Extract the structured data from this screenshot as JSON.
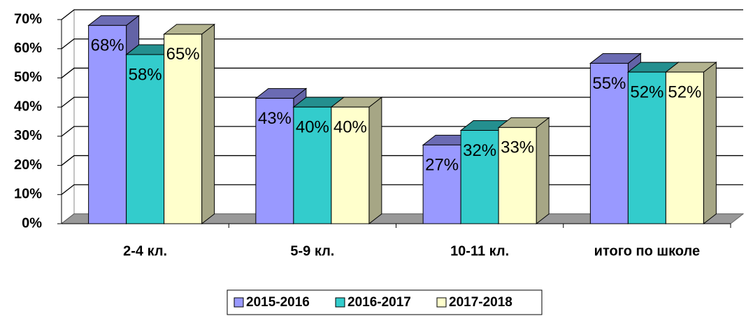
{
  "chart_data": {
    "type": "bar3d",
    "categories": [
      "2-4 кл.",
      "5-9 кл.",
      "10-11 кл.",
      "итого по школе"
    ],
    "series": [
      {
        "name": "2015-2016",
        "color": "#9999ff",
        "values": [
          68,
          43,
          27,
          55
        ],
        "value_labels": [
          "68%",
          "43%",
          "27%",
          "55%"
        ]
      },
      {
        "name": "2016-2017",
        "color": "#33cccc",
        "values": [
          58,
          40,
          32,
          52
        ],
        "value_labels": [
          "58%",
          "40%",
          "32%",
          "52%"
        ]
      },
      {
        "name": "2017-2018",
        "color": "#ffffcc",
        "values": [
          65,
          40,
          33,
          52
        ],
        "value_labels": [
          "65%",
          "40%",
          "33%",
          "52%"
        ]
      }
    ],
    "ylim": [
      0,
      70
    ],
    "yticks": [
      {
        "value": 0,
        "label": "0%"
      },
      {
        "value": 10,
        "label": "10%"
      },
      {
        "value": 20,
        "label": "20%"
      },
      {
        "value": 30,
        "label": "30%"
      },
      {
        "value": 40,
        "label": "40%"
      },
      {
        "value": 50,
        "label": "50%"
      },
      {
        "value": 60,
        "label": "60%"
      },
      {
        "value": 70,
        "label": "70%"
      }
    ],
    "grid": true,
    "legend": "bottom"
  }
}
